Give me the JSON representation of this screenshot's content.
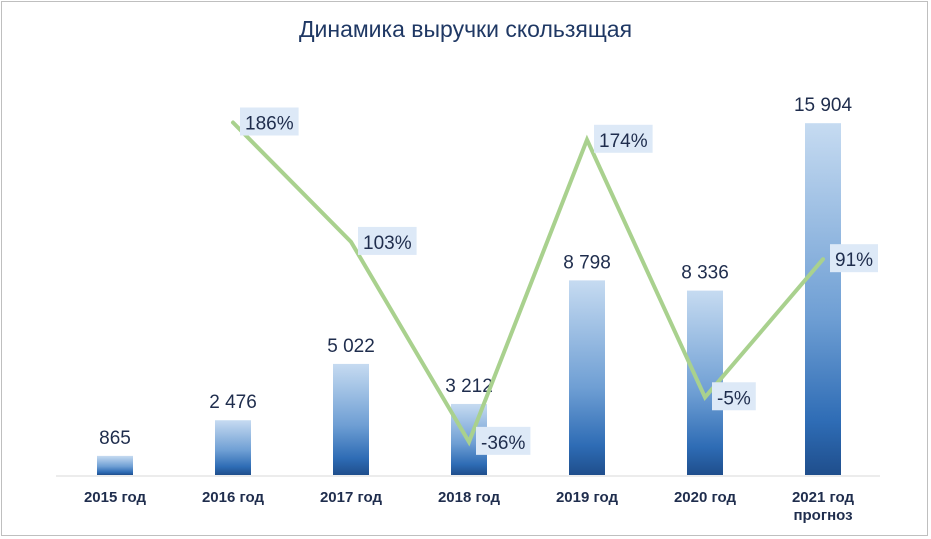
{
  "chart_data": {
    "type": "bar",
    "title": "Динамика выручки скользящая",
    "categories": [
      [
        "2015 год"
      ],
      [
        "2016 год"
      ],
      [
        "2017 год"
      ],
      [
        "2018 год"
      ],
      [
        "2019 год"
      ],
      [
        "2020 год"
      ],
      [
        "2021 год",
        "прогноз"
      ]
    ],
    "series": [
      {
        "type": "bar",
        "values": [
          865,
          2476,
          5022,
          3212,
          8798,
          8336,
          15904
        ],
        "labels": [
          "865",
          "2 476",
          "5 022",
          "3 212",
          "8 798",
          "8 336",
          "15 904"
        ],
        "color_top": "#c6dbf1",
        "color_bottom": "#1f4e8c"
      },
      {
        "type": "line",
        "values": [
          null,
          186,
          103,
          -36,
          174,
          -5,
          91
        ],
        "labels": [
          null,
          "186%",
          "103%",
          "-36%",
          "174%",
          "-5%",
          "91%"
        ],
        "color": "#a9d18e"
      }
    ],
    "ylim": [
      0,
      16500
    ],
    "y2lim": [
      -50,
      210
    ],
    "grid": false,
    "legend": false
  }
}
